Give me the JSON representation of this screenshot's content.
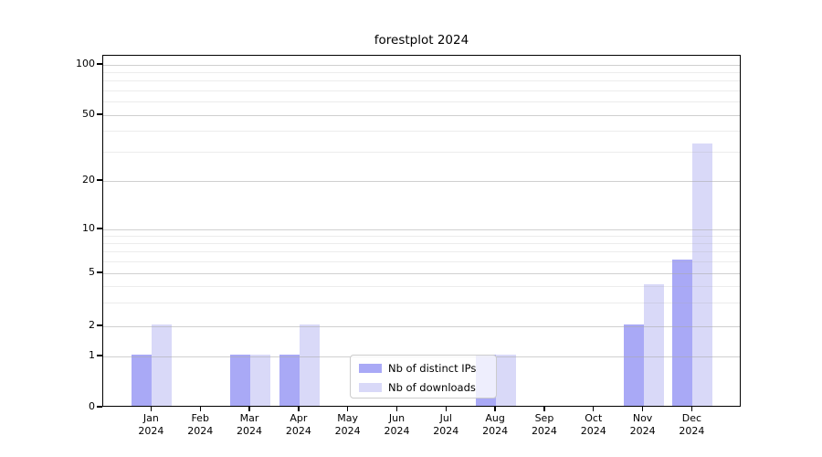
{
  "chart_data": {
    "type": "bar",
    "title": "forestplot 2024",
    "categories": [
      "Jan 2024",
      "Feb 2024",
      "Mar 2024",
      "Apr 2024",
      "May 2024",
      "Jun 2024",
      "Jul 2024",
      "Aug 2024",
      "Sep 2024",
      "Oct 2024",
      "Nov 2024",
      "Dec 2024"
    ],
    "series": [
      {
        "name": "Nb of distinct IPs",
        "color": "#a9a9f6",
        "values": [
          1,
          0,
          1,
          1,
          0,
          0,
          0,
          1,
          0,
          0,
          2,
          6
        ]
      },
      {
        "name": "Nb of downloads",
        "color": "#d9d9f8",
        "values": [
          2,
          0,
          1,
          2,
          0,
          0,
          0,
          1,
          0,
          0,
          4,
          33
        ]
      }
    ],
    "xlabel": "",
    "ylabel": "",
    "yscale": "symlog",
    "ylim": [
      0,
      100
    ],
    "yticks_major": [
      0,
      1,
      2,
      5,
      10,
      20,
      50,
      100
    ],
    "yticks_minor": [
      3,
      4,
      6,
      7,
      8,
      9,
      30,
      40,
      60,
      70,
      80,
      90
    ],
    "grid": "both",
    "legend_position": "lower center"
  },
  "colors": {
    "series_dark": "#a9a9f6",
    "series_light": "#d9d9f8",
    "grid_major": "#d4d4d4",
    "grid_minor": "#ececec",
    "spine": "#000000",
    "legend_border": "#cccccc"
  }
}
